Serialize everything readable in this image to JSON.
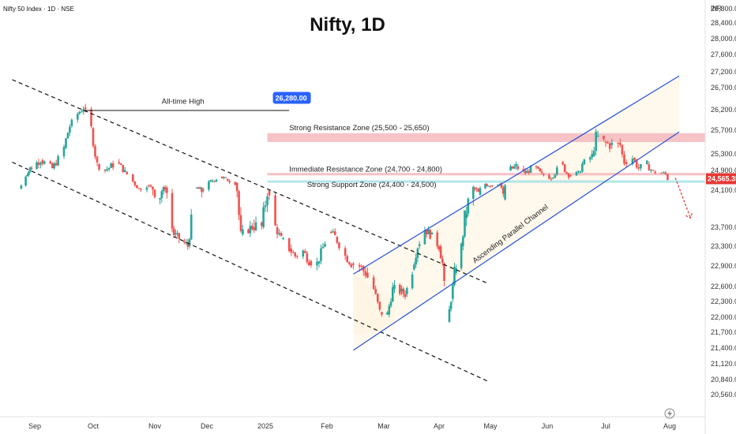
{
  "header": {
    "symbol": "Nifty 50 Index · 1D · NSE",
    "currency": "INR"
  },
  "chart_data": {
    "type": "candlestick",
    "title": "Nifty, 1D",
    "y_ticks": [
      28800,
      28400,
      28000,
      27600,
      27200,
      26700,
      26200,
      25700,
      25300,
      24900,
      24100,
      23700,
      23300,
      22900,
      22600,
      22300,
      22000,
      21700,
      21400,
      21120,
      20840,
      20560
    ],
    "y_tick_labels": [
      "28,800.00",
      "28,400.00",
      "28,000.00",
      "27,600.00",
      "27,200.00",
      "26,700.00",
      "26,200.00",
      "25,700.00",
      "25,300.00",
      "24,900.00",
      "24,100.00",
      "23,700.00",
      "23,300.00",
      "22,900.00",
      "22,600.00",
      "22,300.00",
      "22,000.00",
      "21,700.00",
      "21,400.00",
      "21,120.00",
      "20,840.00",
      "20,560.00"
    ],
    "x_labels": [
      "Sep",
      "Oct",
      "Nov",
      "Dec",
      "2025",
      "Feb",
      "Mar",
      "Apr",
      "May",
      "Jun",
      "Jul",
      "Aug"
    ],
    "last_price_label": "24,565.35",
    "ath_label": "26,280.00",
    "annotations": {
      "ath": "All-time High",
      "strong_resistance": "Strong Resistance Zone (25,500 - 25,650)",
      "immediate_resistance": "Immediate Resistance Zone (24,700 - 24,800)",
      "strong_support": "Strong Support Zone (24,400 - 24,500)",
      "channel": "Ascending Parallel Channel"
    },
    "zones": [
      {
        "name": "Strong Resistance Zone",
        "low": 25500,
        "high": 25650,
        "color": "#f4b9bd"
      },
      {
        "name": "Immediate Resistance Zone",
        "low": 24700,
        "high": 24800,
        "color": "#f4b9bd"
      },
      {
        "name": "Strong Support Zone",
        "low": 24400,
        "high": 24500,
        "color": "#a7e3e6"
      }
    ],
    "price_path": [
      [
        "2024-08-23",
        24150
      ],
      [
        "2024-08-27",
        24700
      ],
      [
        "2024-08-30",
        24950
      ],
      [
        "2024-09-05",
        25150
      ],
      [
        "2024-09-11",
        24950
      ],
      [
        "2024-09-17",
        25400
      ],
      [
        "2024-09-20",
        25800
      ],
      [
        "2024-09-24",
        26100
      ],
      [
        "2024-09-27",
        26250
      ],
      [
        "2024-10-01",
        25750
      ],
      [
        "2024-10-04",
        25050
      ],
      [
        "2024-10-08",
        24900
      ],
      [
        "2024-10-14",
        25100
      ],
      [
        "2024-10-18",
        24850
      ],
      [
        "2024-10-22",
        24450
      ],
      [
        "2024-10-25",
        24150
      ],
      [
        "2024-10-29",
        24300
      ],
      [
        "2024-11-04",
        24000
      ],
      [
        "2024-11-08",
        24200
      ],
      [
        "2024-11-13",
        23550
      ],
      [
        "2024-11-18",
        23400
      ],
      [
        "2024-11-21",
        23300
      ],
      [
        "2024-11-25",
        24200
      ],
      [
        "2024-11-29",
        24100
      ],
      [
        "2024-12-04",
        24450
      ],
      [
        "2024-12-09",
        24650
      ],
      [
        "2024-12-12",
        24550
      ],
      [
        "2024-12-17",
        24400
      ],
      [
        "2024-12-20",
        23550
      ],
      [
        "2024-12-26",
        23700
      ],
      [
        "2024-12-31",
        23700
      ],
      [
        "2025-01-03",
        24100
      ],
      [
        "2025-01-07",
        23700
      ],
      [
        "2025-01-10",
        23450
      ],
      [
        "2025-01-14",
        23250
      ],
      [
        "2025-01-17",
        23100
      ],
      [
        "2025-01-21",
        23200
      ],
      [
        "2025-01-24",
        23000
      ],
      [
        "2025-01-28",
        22950
      ],
      [
        "2025-02-03",
        23600
      ],
      [
        "2025-02-06",
        23500
      ],
      [
        "2025-02-11",
        23100
      ],
      [
        "2025-02-14",
        22950
      ],
      [
        "2025-02-18",
        22900
      ],
      [
        "2025-02-21",
        22800
      ],
      [
        "2025-02-25",
        22550
      ],
      [
        "2025-02-28",
        22100
      ],
      [
        "2025-03-04",
        22050
      ],
      [
        "2025-03-07",
        22550
      ],
      [
        "2025-03-11",
        22500
      ],
      [
        "2025-03-14",
        22450
      ],
      [
        "2025-03-18",
        22850
      ],
      [
        "2025-03-21",
        23300
      ],
      [
        "2025-03-25",
        23650
      ],
      [
        "2025-03-28",
        23550
      ],
      [
        "2025-04-02",
        23300
      ],
      [
        "2025-04-04",
        22950
      ],
      [
        "2025-04-07",
        21900
      ],
      [
        "2025-04-09",
        22350
      ],
      [
        "2025-04-11",
        22800
      ],
      [
        "2025-04-15",
        23300
      ],
      [
        "2025-04-17",
        23800
      ],
      [
        "2025-04-22",
        24200
      ],
      [
        "2025-04-25",
        24050
      ],
      [
        "2025-04-29",
        24350
      ],
      [
        "2025-05-02",
        24300
      ],
      [
        "2025-05-07",
        24400
      ],
      [
        "2025-05-09",
        24000
      ],
      [
        "2025-05-12",
        24900
      ],
      [
        "2025-05-16",
        25000
      ],
      [
        "2025-05-21",
        24800
      ],
      [
        "2025-05-26",
        25000
      ],
      [
        "2025-05-30",
        24750
      ],
      [
        "2025-06-04",
        24600
      ],
      [
        "2025-06-09",
        25100
      ],
      [
        "2025-06-13",
        24700
      ],
      [
        "2025-06-18",
        24800
      ],
      [
        "2025-06-20",
        25050
      ],
      [
        "2025-06-25",
        25250
      ],
      [
        "2025-06-27",
        25600
      ],
      [
        "2025-07-01",
        25500
      ],
      [
        "2025-07-04",
        25450
      ],
      [
        "2025-07-09",
        25450
      ],
      [
        "2025-07-11",
        25100
      ],
      [
        "2025-07-15",
        25200
      ],
      [
        "2025-07-18",
        24950
      ],
      [
        "2025-07-22",
        25050
      ],
      [
        "2025-07-25",
        24850
      ],
      [
        "2025-07-29",
        24800
      ],
      [
        "2025-07-31",
        24750
      ],
      [
        "2025-08-01",
        24565
      ]
    ]
  }
}
